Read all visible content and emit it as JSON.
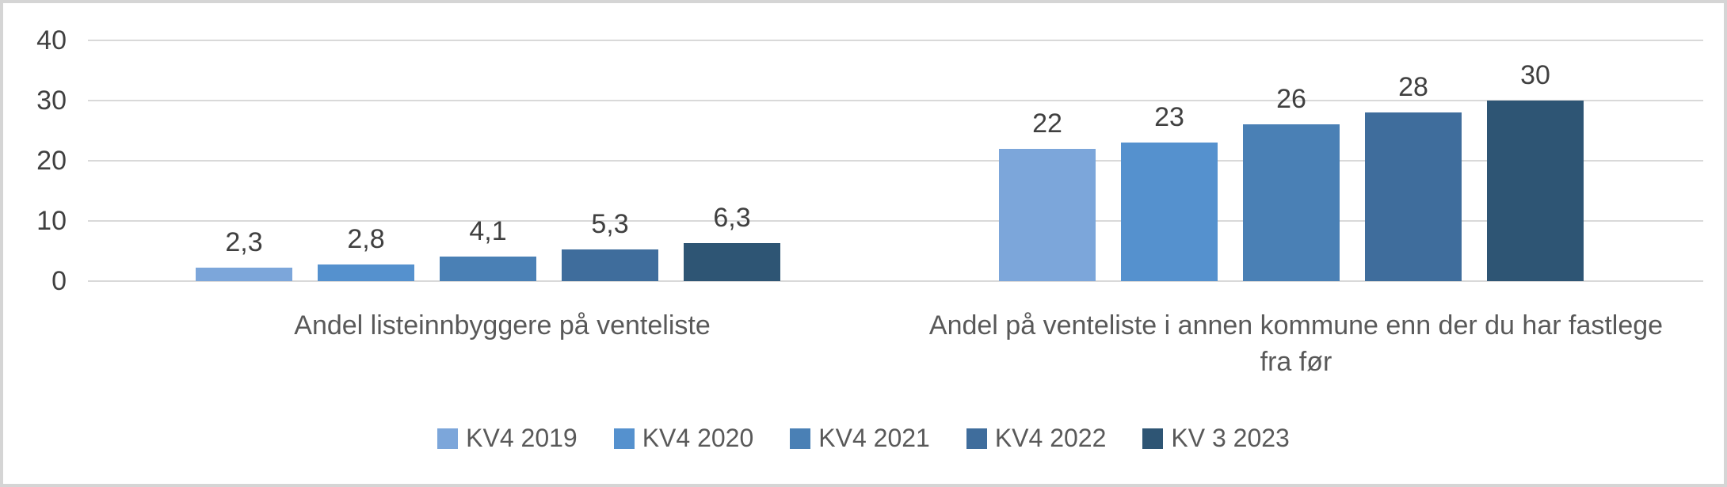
{
  "chart_data": {
    "type": "bar",
    "title": "",
    "categories": [
      "Andel listeinnbyggere på venteliste",
      "Andel på venteliste i annen kommune enn der du har fastlege fra før"
    ],
    "series": [
      {
        "name": "KV4 2019",
        "color": "#7CA6DA",
        "values": [
          2.3,
          22
        ],
        "labels": [
          "2,3",
          "22"
        ]
      },
      {
        "name": "KV4 2020",
        "color": "#5591CE",
        "values": [
          2.8,
          23
        ],
        "labels": [
          "2,8",
          "23"
        ]
      },
      {
        "name": "KV4 2021",
        "color": "#4A80B5",
        "values": [
          4.1,
          26
        ],
        "labels": [
          "4,1",
          "26"
        ]
      },
      {
        "name": "KV4 2022",
        "color": "#3F6D9C",
        "values": [
          5.3,
          28
        ],
        "labels": [
          "5,3",
          "28"
        ]
      },
      {
        "name": "KV 3 2023",
        "color": "#2E5574",
        "values": [
          6.3,
          30
        ],
        "labels": [
          "6,3",
          "30"
        ]
      }
    ],
    "y_ticks": [
      40,
      30,
      20,
      10,
      0
    ],
    "ylim": [
      0,
      40
    ],
    "xlabel": "",
    "ylabel": "",
    "grid": true,
    "legend_position": "bottom",
    "colors": {
      "grid_line": "#D9D9D9",
      "axis_text": "#404040",
      "label_text": "#595959",
      "background": "#FFFFFF",
      "border": "#D5D5D5"
    }
  }
}
